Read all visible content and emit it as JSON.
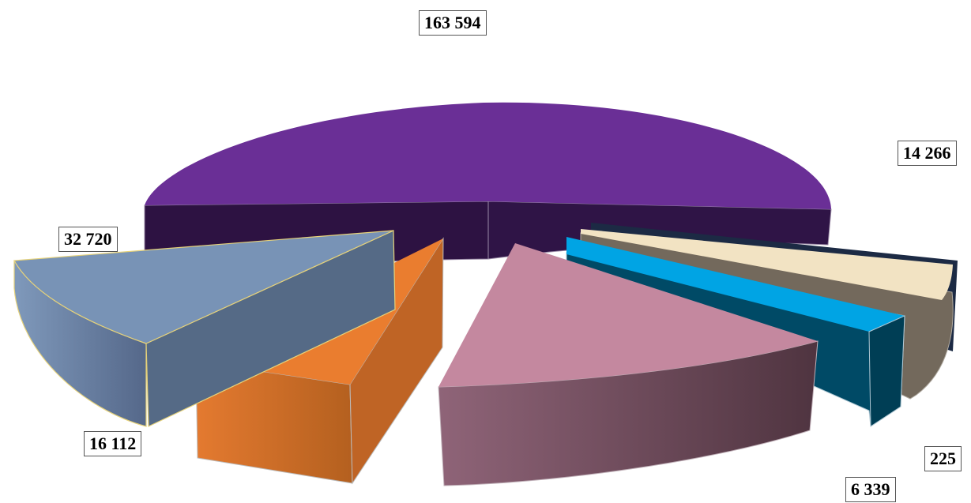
{
  "chart_data": {
    "type": "pie",
    "style": "3d-exploded",
    "legend": "none",
    "slices": [
      {
        "value": 163594,
        "label": "163 594",
        "color": "#6a2f96"
      },
      {
        "value": 14266,
        "label": "14 266",
        "color": "#f2e3c3"
      },
      {
        "value": 225,
        "label": "225",
        "color": "#1c2a44"
      },
      {
        "value": 6339,
        "label": "6 339",
        "color": "#00a4e4"
      },
      {
        "value": 32720,
        "label": "32 720",
        "color": "#c4889f"
      },
      {
        "value": 16112,
        "label": "16 112",
        "color": "#ea7d2f"
      },
      {
        "value": 32720,
        "label": "32 720",
        "color": "#7893b6"
      }
    ]
  }
}
